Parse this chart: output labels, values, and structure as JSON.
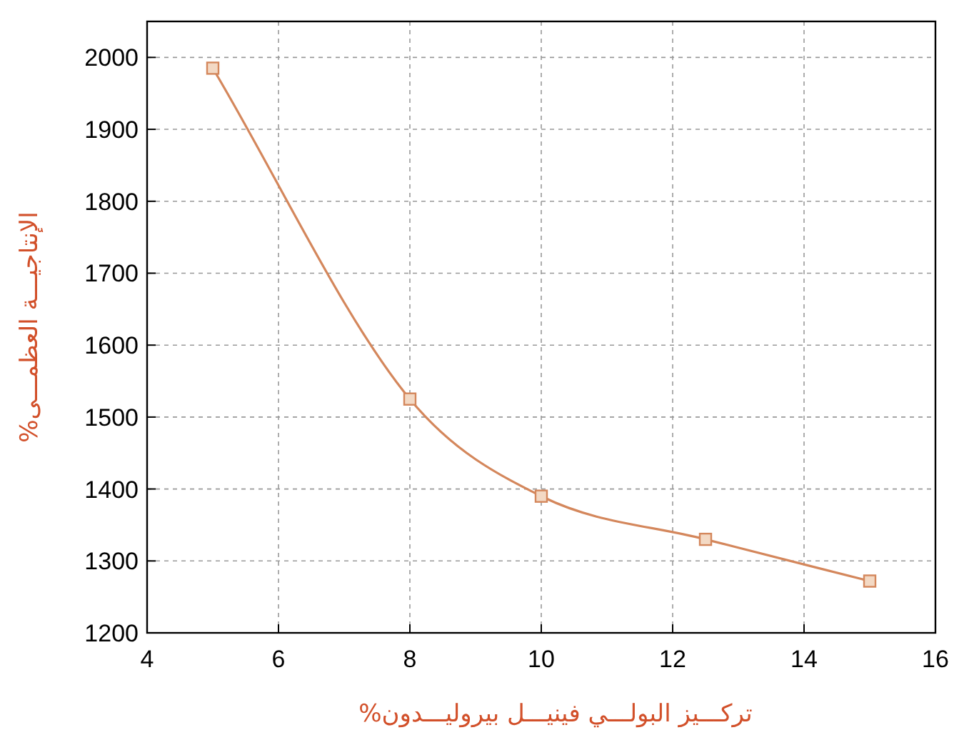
{
  "chart_data": {
    "type": "line",
    "xlabel": "تركـــيز البولـــي فينيـــل بيروليـــدون%",
    "ylabel": "الإنتاجيـــة العظمـــى%",
    "x": [
      5,
      8,
      10,
      12.5,
      15
    ],
    "series": [
      {
        "color": "#d4875c",
        "values": [
          1985,
          1525,
          1390,
          1330,
          1272
        ]
      }
    ],
    "xlim": [
      4,
      16
    ],
    "xticks": [
      4,
      6,
      8,
      10,
      12,
      14,
      16
    ],
    "ylim": [
      1200,
      2050
    ],
    "yticks": [
      1200,
      1300,
      1400,
      1500,
      1600,
      1700,
      1800,
      1900,
      2000
    ],
    "grid": true,
    "marker": "square",
    "line_style": "solid"
  }
}
